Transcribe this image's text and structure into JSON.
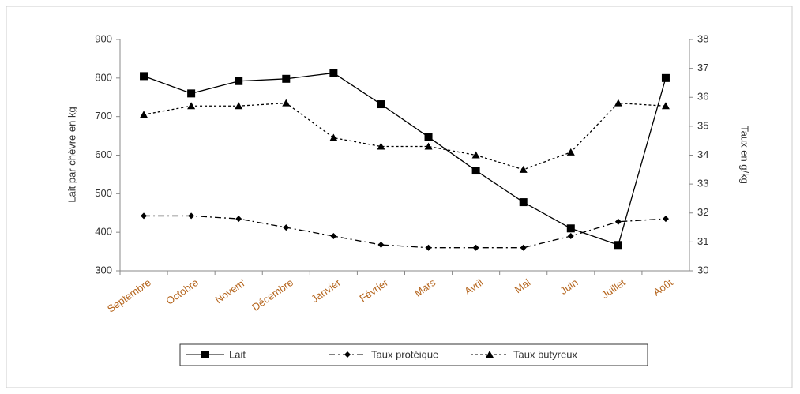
{
  "chart_data": {
    "type": "line",
    "y_label": "Lait par chèvre en kg",
    "y2_label": "Taux en g/kg",
    "categories": [
      "Septembre",
      "Octobre",
      "Novem'",
      "Décembre",
      "Janvier",
      "Février",
      "Mars",
      "Avril",
      "Mai",
      "Juin",
      "Juillet",
      "Août"
    ],
    "series": [
      {
        "name": "Lait",
        "color": "#000000",
        "marker": "square",
        "dash": "solid",
        "values": [
          805,
          760,
          792,
          798,
          813,
          732,
          647,
          560,
          478,
          410,
          367,
          800
        ]
      },
      {
        "name": "Taux protéique",
        "color": "#000000",
        "marker": "diamond",
        "dash": "dashdot",
        "axis": "y2",
        "values": [
          31.9,
          31.9,
          31.8,
          31.5,
          31.2,
          30.9,
          30.8,
          30.8,
          30.8,
          31.2,
          31.7,
          31.8
        ]
      },
      {
        "name": "Taux butyreux",
        "color": "#000000",
        "marker": "triangle",
        "dash": "dotted",
        "axis": "y2",
        "values": [
          35.4,
          35.7,
          35.7,
          35.8,
          34.6,
          34.3,
          34.3,
          34.0,
          33.5,
          34.1,
          35.8,
          35.7
        ]
      }
    ],
    "ylim": [
      300,
      900
    ],
    "yticks": [
      300,
      400,
      500,
      600,
      700,
      800,
      900
    ],
    "y2lim": [
      30,
      38
    ],
    "y2ticks": [
      30,
      31,
      32,
      33,
      34,
      35,
      36,
      37,
      38
    ],
    "grid": false,
    "legend": "bottom"
  }
}
